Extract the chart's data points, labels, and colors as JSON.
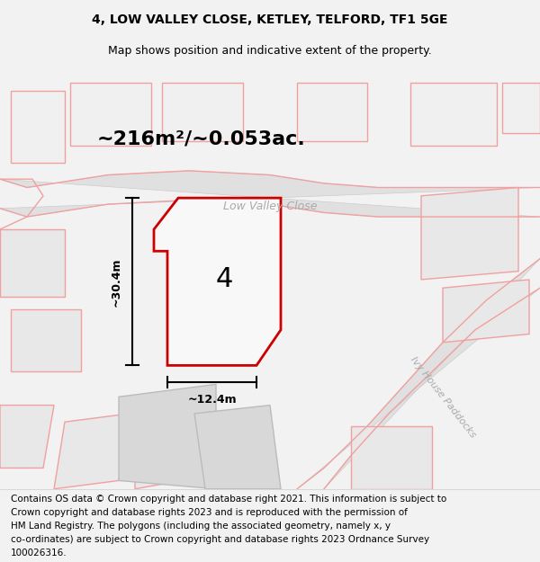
{
  "title": "4, LOW VALLEY CLOSE, KETLEY, TELFORD, TF1 5GE",
  "subtitle": "Map shows position and indicative extent of the property.",
  "area_text": "~216m²/~0.053ac.",
  "width_label": "~12.4m",
  "height_label": "~30.4m",
  "property_number": "4",
  "street_label_1": "Low Valley Close",
  "street_label_2": "Ivy House Paddocks",
  "footer_lines": [
    "Contains OS data © Crown copyright and database right 2021. This information is subject to",
    "Crown copyright and database rights 2023 and is reproduced with the permission of",
    "HM Land Registry. The polygons (including the associated geometry, namely x, y",
    "co-ordinates) are subject to Crown copyright and database rights 2023 Ordnance Survey",
    "100026316."
  ],
  "bg_color": "#f2f2f2",
  "map_bg": "#ffffff",
  "property_fill": "#f8f8f8",
  "property_edge": "#cc0000",
  "light_red": "#f0a0a0",
  "gray_fill": "#d8d8d8",
  "road_color": "#d0d0d0",
  "title_fontsize": 10,
  "subtitle_fontsize": 9,
  "footer_fontsize": 7.5
}
